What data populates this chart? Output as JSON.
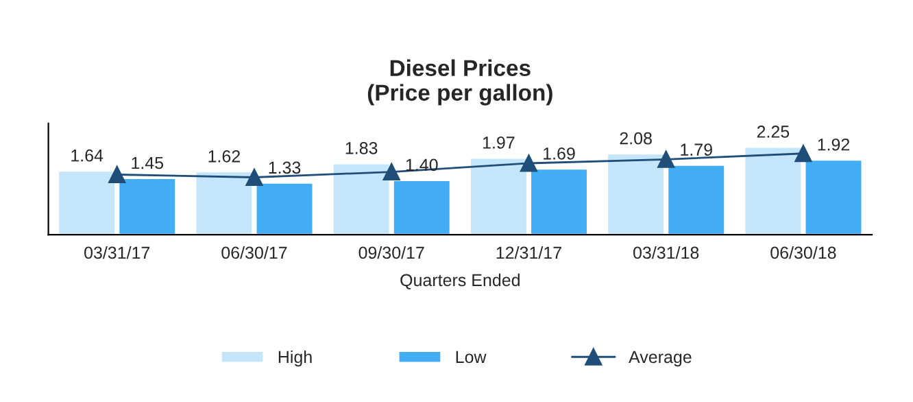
{
  "chart_data": {
    "type": "bar",
    "title": "Diesel Prices\n(Price per gallon)",
    "xlabel": "Quarters Ended",
    "categories": [
      "03/31/17",
      "06/30/17",
      "09/30/17",
      "12/31/17",
      "03/31/18",
      "06/30/18"
    ],
    "series": [
      {
        "name": "High",
        "color": "#c5e5fb",
        "values": [
          1.64,
          1.62,
          1.83,
          1.97,
          2.08,
          2.25
        ],
        "value_labels": [
          "1.64",
          "1.62",
          "1.83",
          "1.97",
          "2.08",
          "2.25"
        ]
      },
      {
        "name": "Low",
        "color": "#42adf5",
        "values": [
          1.45,
          1.33,
          1.4,
          1.69,
          1.79,
          1.92
        ],
        "value_labels": [
          "1.45",
          "1.33",
          "1.40",
          "1.69",
          "1.79",
          "1.92"
        ]
      },
      {
        "name": "Average",
        "type": "line",
        "color": "#1f4e79",
        "marker": "triangle",
        "values": [
          1.54,
          1.47,
          1.61,
          1.83,
          1.93,
          2.08
        ]
      }
    ],
    "ylim": [
      0,
      2.85
    ],
    "tick_labels": "x",
    "legend": "bottom",
    "grid": false
  }
}
